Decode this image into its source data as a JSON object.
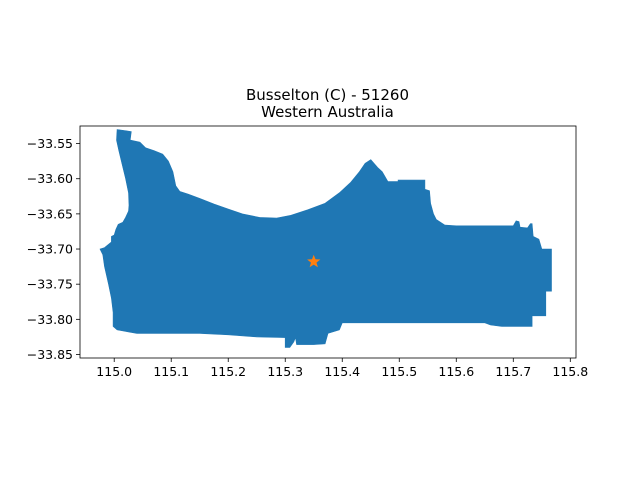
{
  "map": {
    "title_line1": "Busselton (C) - 51260",
    "title_line2": "Western Australia",
    "region_color": "#1f77b4",
    "marker_color": "#ff7f0e",
    "marker_icon": "star-icon",
    "marker_lonlat": [
      115.35,
      -33.718
    ],
    "xlim": [
      114.94,
      115.81
    ],
    "ylim": [
      -33.855,
      -33.525
    ],
    "x_ticks": [
      {
        "value": 115.0,
        "label": "115.0"
      },
      {
        "value": 115.1,
        "label": "115.1"
      },
      {
        "value": 115.2,
        "label": "115.2"
      },
      {
        "value": 115.3,
        "label": "115.3"
      },
      {
        "value": 115.4,
        "label": "115.4"
      },
      {
        "value": 115.5,
        "label": "115.5"
      },
      {
        "value": 115.6,
        "label": "115.6"
      },
      {
        "value": 115.7,
        "label": "115.7"
      },
      {
        "value": 115.8,
        "label": "115.8"
      }
    ],
    "y_ticks": [
      {
        "value": -33.55,
        "label": "−33.55"
      },
      {
        "value": -33.6,
        "label": "−33.60"
      },
      {
        "value": -33.65,
        "label": "−33.65"
      },
      {
        "value": -33.7,
        "label": "−33.70"
      },
      {
        "value": -33.75,
        "label": "−33.75"
      },
      {
        "value": -33.8,
        "label": "−33.80"
      },
      {
        "value": -33.85,
        "label": "−33.85"
      }
    ],
    "region_outline": [
      [
        115.005,
        -33.53
      ],
      [
        115.03,
        -33.533
      ],
      [
        115.028,
        -33.545
      ],
      [
        115.045,
        -33.548
      ],
      [
        115.055,
        -33.556
      ],
      [
        115.07,
        -33.56
      ],
      [
        115.085,
        -33.565
      ],
      [
        115.095,
        -33.575
      ],
      [
        115.103,
        -33.59
      ],
      [
        115.108,
        -33.61
      ],
      [
        115.115,
        -33.618
      ],
      [
        115.13,
        -33.622
      ],
      [
        115.15,
        -33.628
      ],
      [
        115.175,
        -33.636
      ],
      [
        115.2,
        -33.643
      ],
      [
        115.225,
        -33.65
      ],
      [
        115.255,
        -33.655
      ],
      [
        115.285,
        -33.656
      ],
      [
        115.31,
        -33.652
      ],
      [
        115.34,
        -33.644
      ],
      [
        115.37,
        -33.635
      ],
      [
        115.395,
        -33.62
      ],
      [
        115.415,
        -33.605
      ],
      [
        115.43,
        -33.59
      ],
      [
        115.44,
        -33.578
      ],
      [
        115.45,
        -33.573
      ],
      [
        115.462,
        -33.584
      ],
      [
        115.47,
        -33.59
      ],
      [
        115.48,
        -33.604
      ],
      [
        115.498,
        -33.604
      ],
      [
        115.498,
        -33.602
      ],
      [
        115.545,
        -33.602
      ],
      [
        115.545,
        -33.615
      ],
      [
        115.553,
        -33.617
      ],
      [
        115.555,
        -33.635
      ],
      [
        115.56,
        -33.65
      ],
      [
        115.565,
        -33.658
      ],
      [
        115.58,
        -33.666
      ],
      [
        115.6,
        -33.667
      ],
      [
        115.64,
        -33.667
      ],
      [
        115.7,
        -33.667
      ],
      [
        115.705,
        -33.66
      ],
      [
        115.71,
        -33.661
      ],
      [
        115.712,
        -33.669
      ],
      [
        115.725,
        -33.67
      ],
      [
        115.73,
        -33.664
      ],
      [
        115.733,
        -33.664
      ],
      [
        115.735,
        -33.682
      ],
      [
        115.745,
        -33.686
      ],
      [
        115.75,
        -33.7
      ],
      [
        115.767,
        -33.7
      ],
      [
        115.767,
        -33.76
      ],
      [
        115.757,
        -33.76
      ],
      [
        115.757,
        -33.795
      ],
      [
        115.733,
        -33.795
      ],
      [
        115.733,
        -33.81
      ],
      [
        115.68,
        -33.81
      ],
      [
        115.66,
        -33.808
      ],
      [
        115.65,
        -33.805
      ],
      [
        115.4,
        -33.805
      ],
      [
        115.395,
        -33.815
      ],
      [
        115.375,
        -33.82
      ],
      [
        115.37,
        -33.835
      ],
      [
        115.35,
        -33.836
      ],
      [
        115.32,
        -33.836
      ],
      [
        115.318,
        -33.826
      ],
      [
        115.315,
        -33.832
      ],
      [
        115.308,
        -33.84
      ],
      [
        115.3,
        -33.84
      ],
      [
        115.3,
        -33.826
      ],
      [
        115.25,
        -33.825
      ],
      [
        115.2,
        -33.822
      ],
      [
        115.15,
        -33.82
      ],
      [
        115.1,
        -33.82
      ],
      [
        115.04,
        -33.82
      ],
      [
        115.005,
        -33.815
      ],
      [
        114.998,
        -33.81
      ],
      [
        114.998,
        -33.79
      ],
      [
        114.995,
        -33.77
      ],
      [
        114.99,
        -33.75
      ],
      [
        114.983,
        -33.725
      ],
      [
        114.98,
        -33.708
      ],
      [
        114.975,
        -33.7
      ],
      [
        114.983,
        -33.698
      ],
      [
        114.995,
        -33.69
      ],
      [
        114.995,
        -33.682
      ],
      [
        115.0,
        -33.68
      ],
      [
        115.003,
        -33.672
      ],
      [
        115.007,
        -33.665
      ],
      [
        115.015,
        -33.662
      ],
      [
        115.02,
        -33.655
      ],
      [
        115.025,
        -33.646
      ],
      [
        115.026,
        -33.638
      ],
      [
        115.025,
        -33.62
      ],
      [
        115.02,
        -33.6
      ],
      [
        115.014,
        -33.58
      ],
      [
        115.008,
        -33.56
      ],
      [
        115.004,
        -33.545
      ],
      [
        115.005,
        -33.53
      ]
    ]
  }
}
